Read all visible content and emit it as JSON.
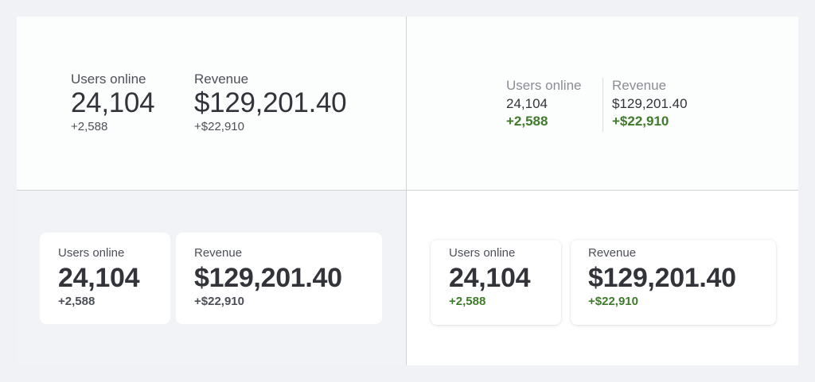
{
  "variants": [
    {
      "stats": [
        {
          "label": "Users online",
          "value": "24,104",
          "delta": "+2,588"
        },
        {
          "label": "Revenue",
          "value": "$129,201.40",
          "delta": "+$22,910"
        }
      ]
    },
    {
      "stats": [
        {
          "label": "Users online",
          "value": "24,104",
          "delta": "+2,588"
        },
        {
          "label": "Revenue",
          "value": "$129,201.40",
          "delta": "+$22,910"
        }
      ]
    },
    {
      "stats": [
        {
          "label": "Users online",
          "value": "24,104",
          "delta": "+2,588"
        },
        {
          "label": "Revenue",
          "value": "$129,201.40",
          "delta": "+$22,910"
        }
      ]
    },
    {
      "stats": [
        {
          "label": "Users online",
          "value": "24,104",
          "delta": "+2,588"
        },
        {
          "label": "Revenue",
          "value": "$129,201.40",
          "delta": "+$22,910"
        }
      ]
    }
  ],
  "colors": {
    "page_background": "#f1f2f6",
    "positive_delta": "#3e7b2a",
    "value_text": "#32343a",
    "divider": "#cfd1d5"
  }
}
